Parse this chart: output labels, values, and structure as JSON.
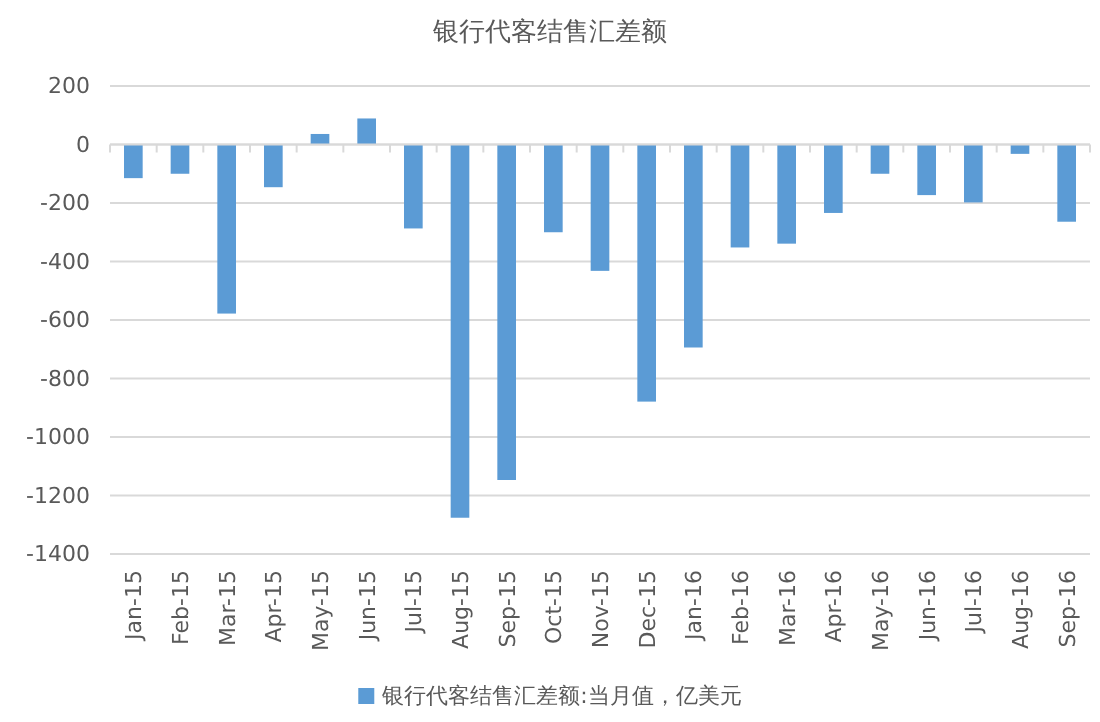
{
  "chart_data": {
    "type": "bar",
    "title": "银行代客结售汇差额",
    "categories": [
      "Jan-15",
      "Feb-15",
      "Mar-15",
      "Apr-15",
      "May-15",
      "Jun-15",
      "Jul-15",
      "Aug-15",
      "Sep-15",
      "Oct-15",
      "Nov-15",
      "Dec-15",
      "Jan-16",
      "Feb-16",
      "Mar-16",
      "Apr-16",
      "May-16",
      "Jun-16",
      "Jul-16",
      "Aug-16",
      "Sep-16"
    ],
    "series": [
      {
        "name": "银行代客结售汇差额:当月值，亿美元",
        "color": "#5b9bd5",
        "values": [
          -115,
          -100,
          -578,
          -146,
          36,
          89,
          -287,
          -1276,
          -1147,
          -300,
          -432,
          -879,
          -694,
          -352,
          -339,
          -234,
          -100,
          -173,
          -198,
          -32,
          -264
        ]
      }
    ],
    "ylim": [
      -1400,
      200
    ],
    "yticks": [
      -1400,
      -1200,
      -1000,
      -800,
      -600,
      -400,
      -200,
      0,
      200
    ],
    "grid": "y",
    "legend": "bottom"
  }
}
